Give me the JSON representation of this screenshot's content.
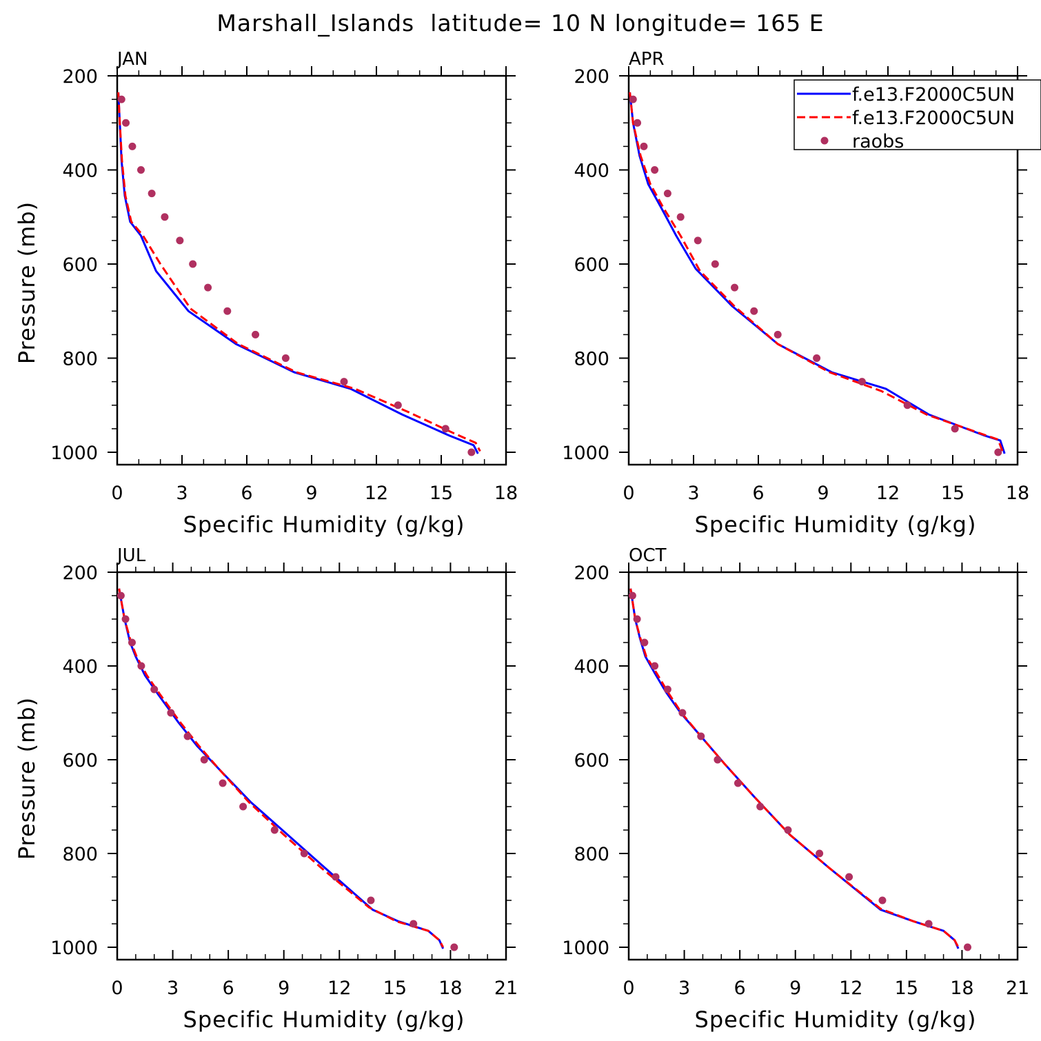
{
  "title": "Marshall_Islands  latitude= 10 N longitude= 165 E",
  "legend": {
    "placement": "top-right of APR panel",
    "entries": [
      {
        "label": "f.e13.F2000C5UN",
        "color": "#0000ff",
        "style": "solid"
      },
      {
        "label": "f.e13.F2000C5UN",
        "color": "#ff0000",
        "style": "dashed"
      },
      {
        "label": "raobs",
        "color": "#b03060",
        "style": "marker"
      }
    ]
  },
  "chart_data": [
    {
      "type": "line",
      "label": "JAN",
      "xlabel": "Specific Humidity (g/kg)",
      "ylabel": "Pressure (mb)",
      "xlim": [
        0,
        18
      ],
      "xticks": [
        0,
        3,
        6,
        9,
        12,
        15,
        18
      ],
      "ylim": [
        1000,
        200
      ],
      "yticks": [
        200,
        400,
        600,
        800,
        1000
      ],
      "grid": false,
      "series": [
        {
          "name": "f.e13.F2000C5UN",
          "color": "#0000ff",
          "style": "solid",
          "x": [
            0.05,
            0.12,
            0.2,
            0.35,
            0.6,
            1.1,
            1.8,
            3.3,
            5.5,
            8.2,
            10.8,
            13.2,
            15.4,
            16.5,
            16.7
          ],
          "y": [
            235,
            300,
            380,
            455,
            510,
            540,
            615,
            700,
            770,
            830,
            865,
            920,
            965,
            985,
            1003
          ]
        },
        {
          "name": "f.e13.F2000C5UN",
          "color": "#ff0000",
          "style": "dashed",
          "x": [
            0.05,
            0.12,
            0.22,
            0.38,
            0.65,
            1.2,
            2.0,
            3.4,
            5.6,
            8.3,
            11.0,
            13.5,
            15.6,
            16.6,
            16.8
          ],
          "y": [
            235,
            300,
            380,
            455,
            510,
            540,
            600,
            695,
            770,
            830,
            865,
            915,
            960,
            980,
            998
          ]
        },
        {
          "name": "raobs",
          "color": "#b03060",
          "style": "marker",
          "x": [
            0.2,
            0.4,
            0.7,
            1.1,
            1.6,
            2.2,
            2.9,
            3.5,
            4.2,
            5.1,
            6.4,
            7.8,
            10.5,
            13.0,
            15.2,
            16.4
          ],
          "y": [
            250,
            300,
            350,
            400,
            450,
            500,
            550,
            600,
            650,
            700,
            750,
            800,
            850,
            900,
            950,
            1000
          ]
        }
      ]
    },
    {
      "type": "line",
      "label": "APR",
      "xlabel": "Specific Humidity (g/kg)",
      "ylabel": "",
      "xlim": [
        0,
        18
      ],
      "xticks": [
        0,
        3,
        6,
        9,
        12,
        15,
        18
      ],
      "ylim": [
        1000,
        200
      ],
      "yticks": [
        200,
        400,
        600,
        800,
        1000
      ],
      "grid": false,
      "series": [
        {
          "name": "f.e13.F2000C5UN",
          "color": "#0000ff",
          "style": "solid",
          "x": [
            0.05,
            0.2,
            0.5,
            0.9,
            1.5,
            2.2,
            3.1,
            4.8,
            6.9,
            9.4,
            11.9,
            13.9,
            16.5,
            17.2,
            17.4
          ],
          "y": [
            235,
            300,
            370,
            430,
            480,
            540,
            610,
            690,
            770,
            830,
            865,
            920,
            965,
            975,
            1003
          ]
        },
        {
          "name": "f.e13.F2000C5UN",
          "color": "#ff0000",
          "style": "dashed",
          "x": [
            0.05,
            0.2,
            0.55,
            1.0,
            1.6,
            2.4,
            3.3,
            4.9,
            6.9,
            9.3,
            11.7,
            13.8,
            16.4,
            17.1,
            17.3
          ],
          "y": [
            235,
            300,
            370,
            430,
            480,
            540,
            615,
            690,
            770,
            830,
            870,
            920,
            962,
            973,
            998
          ]
        },
        {
          "name": "raobs",
          "color": "#b03060",
          "style": "marker",
          "x": [
            0.2,
            0.4,
            0.7,
            1.2,
            1.8,
            2.4,
            3.2,
            4.0,
            4.9,
            5.8,
            6.9,
            8.7,
            10.8,
            12.9,
            15.1,
            17.1
          ],
          "y": [
            250,
            300,
            350,
            400,
            450,
            500,
            550,
            600,
            650,
            700,
            750,
            800,
            850,
            900,
            950,
            1000
          ]
        }
      ]
    },
    {
      "type": "line",
      "label": "JUL",
      "xlabel": "Specific Humidity (g/kg)",
      "ylabel": "Pressure (mb)",
      "xlim": [
        0,
        21
      ],
      "xticks": [
        0,
        3,
        6,
        9,
        12,
        15,
        18,
        21
      ],
      "ylim": [
        1000,
        200
      ],
      "yticks": [
        200,
        400,
        600,
        800,
        1000
      ],
      "grid": false,
      "series": [
        {
          "name": "f.e13.F2000C5UN",
          "color": "#0000ff",
          "style": "solid",
          "x": [
            0.1,
            0.4,
            0.7,
            1.0,
            1.5,
            2.2,
            3.3,
            4.3,
            5.5,
            7.2,
            9.2,
            11.2,
            13.8,
            15.2,
            16.8,
            17.4,
            17.6
          ],
          "y": [
            235,
            300,
            350,
            380,
            420,
            460,
            520,
            570,
            620,
            690,
            760,
            830,
            920,
            945,
            965,
            985,
            1003
          ]
        },
        {
          "name": "f.e13.F2000C5UN",
          "color": "#ff0000",
          "style": "dashed",
          "x": [
            0.1,
            0.4,
            0.75,
            1.05,
            1.6,
            2.3,
            3.4,
            4.4,
            5.5,
            7.1,
            9.0,
            11.0,
            13.6,
            15.1,
            16.8,
            17.4,
            17.6
          ],
          "y": [
            235,
            300,
            350,
            380,
            420,
            460,
            520,
            570,
            620,
            690,
            760,
            830,
            915,
            945,
            965,
            985,
            1000
          ]
        },
        {
          "name": "raobs",
          "color": "#b03060",
          "style": "marker",
          "x": [
            0.2,
            0.45,
            0.8,
            1.3,
            2.0,
            2.9,
            3.8,
            4.7,
            5.7,
            6.8,
            8.5,
            10.1,
            11.8,
            13.7,
            16.0,
            18.2
          ],
          "y": [
            250,
            300,
            350,
            400,
            450,
            500,
            550,
            600,
            650,
            700,
            750,
            800,
            850,
            900,
            950,
            1000
          ]
        }
      ]
    },
    {
      "type": "line",
      "label": "OCT",
      "xlabel": "Specific Humidity (g/kg)",
      "ylabel": "",
      "xlim": [
        0,
        21
      ],
      "xticks": [
        0,
        3,
        6,
        9,
        12,
        15,
        18,
        21
      ],
      "ylim": [
        1000,
        200
      ],
      "yticks": [
        200,
        400,
        600,
        800,
        1000
      ],
      "grid": false,
      "series": [
        {
          "name": "f.e13.F2000C5UN",
          "color": "#0000ff",
          "style": "solid",
          "x": [
            0.1,
            0.35,
            0.6,
            0.9,
            1.4,
            2.0,
            2.8,
            3.9,
            5.2,
            6.8,
            8.7,
            10.8,
            13.6,
            15.4,
            17.0,
            17.6,
            17.8
          ],
          "y": [
            235,
            300,
            340,
            380,
            415,
            455,
            500,
            550,
            610,
            680,
            760,
            830,
            920,
            945,
            965,
            985,
            1003
          ]
        },
        {
          "name": "f.e13.F2000C5UN",
          "color": "#ff0000",
          "style": "dashed",
          "x": [
            0.1,
            0.35,
            0.62,
            0.95,
            1.5,
            2.1,
            2.85,
            3.9,
            5.2,
            6.8,
            8.7,
            10.8,
            13.6,
            15.4,
            17.0,
            17.6,
            17.8
          ],
          "y": [
            235,
            300,
            340,
            380,
            415,
            455,
            500,
            550,
            610,
            680,
            760,
            830,
            918,
            945,
            965,
            985,
            1000
          ]
        },
        {
          "name": "raobs",
          "color": "#b03060",
          "style": "marker",
          "x": [
            0.2,
            0.45,
            0.85,
            1.4,
            2.1,
            2.9,
            3.9,
            4.8,
            5.9,
            7.1,
            8.6,
            10.3,
            11.9,
            13.7,
            16.2,
            18.3
          ],
          "y": [
            250,
            300,
            350,
            400,
            450,
            500,
            550,
            600,
            650,
            700,
            750,
            800,
            850,
            900,
            950,
            1000
          ]
        }
      ]
    }
  ]
}
